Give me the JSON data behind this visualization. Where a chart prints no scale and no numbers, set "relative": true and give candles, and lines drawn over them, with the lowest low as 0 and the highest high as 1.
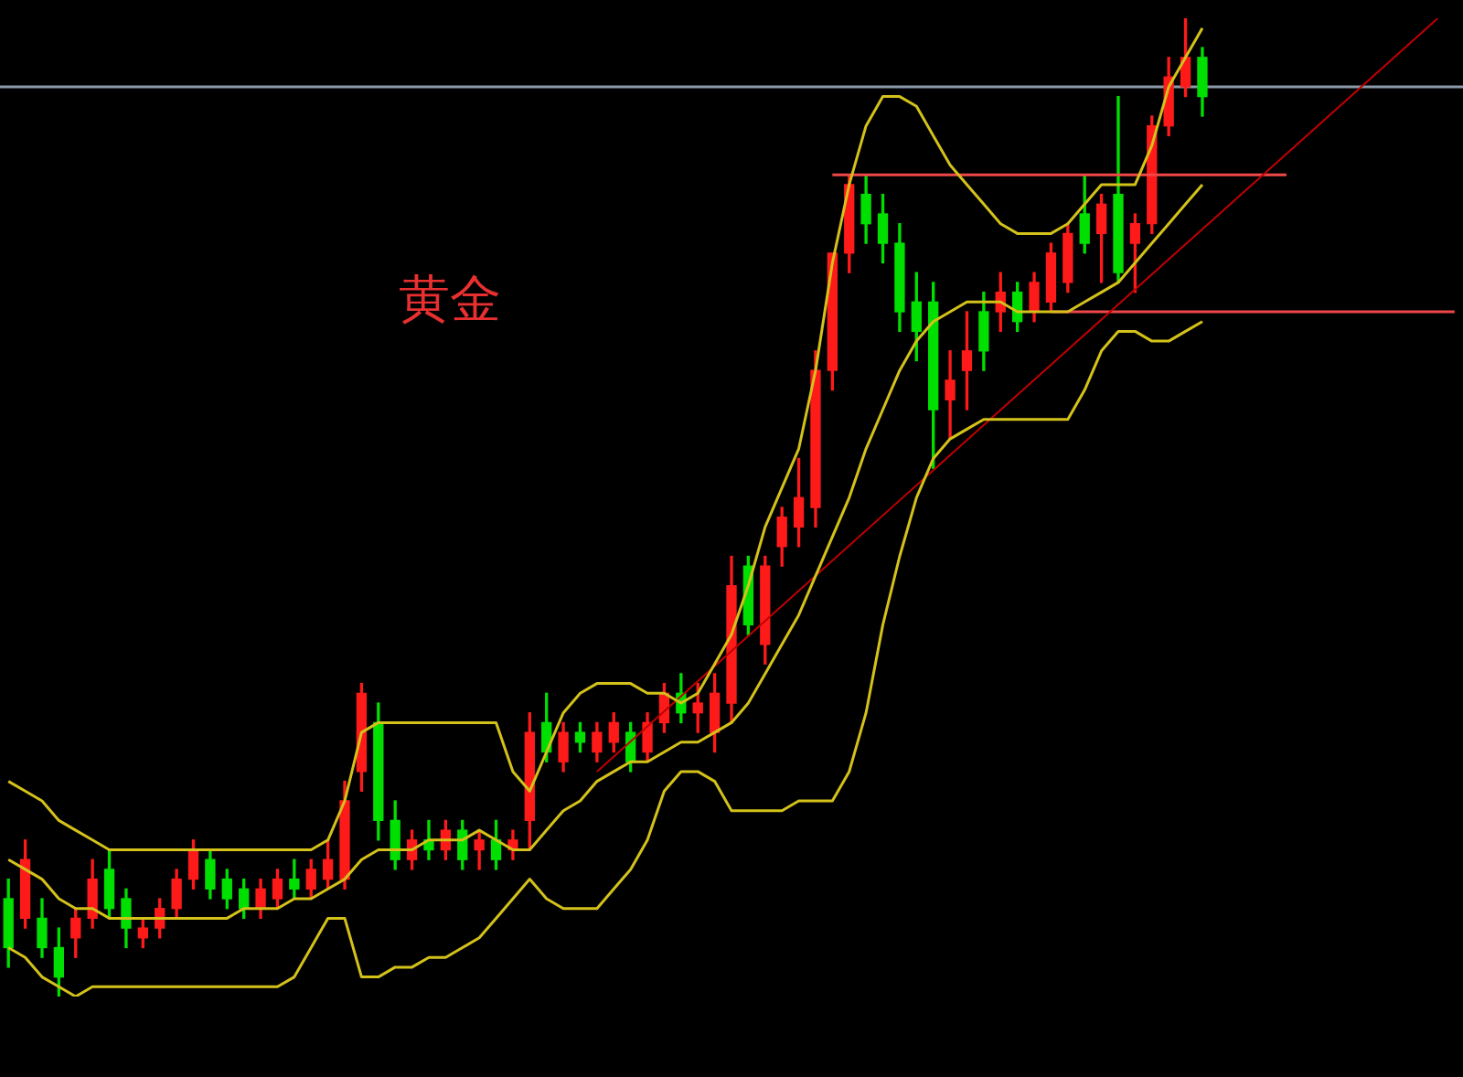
{
  "chart_data": {
    "type": "candlestick",
    "title": "黄金",
    "relative": true,
    "legend": false,
    "categories": [
      null,
      null,
      null,
      null,
      null,
      null,
      null,
      null,
      null,
      null,
      null,
      null,
      null,
      null,
      null,
      null,
      null,
      null,
      null,
      null,
      null,
      null,
      null,
      null,
      null,
      null,
      null,
      null,
      null,
      null,
      null,
      null,
      null,
      null,
      null,
      null,
      null,
      null,
      null,
      null,
      null,
      null,
      null,
      null,
      null,
      null,
      null,
      null,
      null,
      null,
      null,
      null,
      null,
      null,
      null,
      null,
      null,
      null,
      null,
      null,
      null,
      null,
      null,
      null,
      null,
      null,
      null,
      null,
      null,
      null,
      null,
      null,
      null,
      null,
      null,
      null,
      null,
      null,
      null,
      null,
      null,
      null,
      null,
      null,
      null,
      null,
      null
    ],
    "ohlc": [
      [
        0.1,
        0.12,
        0.03,
        0.05
      ],
      [
        0.08,
        0.16,
        0.07,
        0.14
      ],
      [
        0.08,
        0.1,
        0.04,
        0.05
      ],
      [
        0.05,
        0.07,
        0,
        0.02
      ],
      [
        0.06,
        0.09,
        0.04,
        0.08
      ],
      [
        0.08,
        0.14,
        0.07,
        0.12
      ],
      [
        0.13,
        0.15,
        0.08,
        0.09
      ],
      [
        0.1,
        0.11,
        0.05,
        0.07
      ],
      [
        0.06,
        0.08,
        0.05,
        0.07
      ],
      [
        0.07,
        0.1,
        0.06,
        0.09
      ],
      [
        0.09,
        0.13,
        0.08,
        0.12
      ],
      [
        0.12,
        0.16,
        0.11,
        0.15
      ],
      [
        0.14,
        0.15,
        0.1,
        0.11
      ],
      [
        0.12,
        0.13,
        0.09,
        0.1
      ],
      [
        0.11,
        0.12,
        0.08,
        0.09
      ],
      [
        0.09,
        0.12,
        0.08,
        0.11
      ],
      [
        0.1,
        0.13,
        0.09,
        0.12
      ],
      [
        0.12,
        0.14,
        0.1,
        0.11
      ],
      [
        0.11,
        0.14,
        0.1,
        0.13
      ],
      [
        0.12,
        0.16,
        0.11,
        0.14
      ],
      [
        0.12,
        0.22,
        0.11,
        0.2
      ],
      [
        0.23,
        0.32,
        0.21,
        0.31
      ],
      [
        0.28,
        0.3,
        0.16,
        0.18
      ],
      [
        0.18,
        0.2,
        0.13,
        0.14
      ],
      [
        0.14,
        0.17,
        0.13,
        0.16
      ],
      [
        0.16,
        0.18,
        0.14,
        0.15
      ],
      [
        0.15,
        0.18,
        0.14,
        0.17
      ],
      [
        0.17,
        0.18,
        0.13,
        0.14
      ],
      [
        0.15,
        0.17,
        0.13,
        0.16
      ],
      [
        0.16,
        0.18,
        0.13,
        0.14
      ],
      [
        0.15,
        0.17,
        0.14,
        0.16
      ],
      [
        0.18,
        0.29,
        0.15,
        0.27
      ],
      [
        0.28,
        0.31,
        0.24,
        0.25
      ],
      [
        0.24,
        0.28,
        0.23,
        0.27
      ],
      [
        0.27,
        0.28,
        0.25,
        0.26
      ],
      [
        0.25,
        0.28,
        0.24,
        0.27
      ],
      [
        0.26,
        0.29,
        0.25,
        0.28
      ],
      [
        0.27,
        0.28,
        0.23,
        0.24
      ],
      [
        0.25,
        0.29,
        0.24,
        0.28
      ],
      [
        0.28,
        0.32,
        0.27,
        0.31
      ],
      [
        0.31,
        0.33,
        0.28,
        0.29
      ],
      [
        0.29,
        0.32,
        0.27,
        0.3
      ],
      [
        0.27,
        0.33,
        0.25,
        0.31
      ],
      [
        0.3,
        0.45,
        0.28,
        0.42
      ],
      [
        0.44,
        0.45,
        0.37,
        0.38
      ],
      [
        0.36,
        0.45,
        0.34,
        0.44
      ],
      [
        0.46,
        0.5,
        0.44,
        0.49
      ],
      [
        0.48,
        0.55,
        0.46,
        0.51
      ],
      [
        0.5,
        0.66,
        0.48,
        0.64
      ],
      [
        0.64,
        0.76,
        0.62,
        0.76
      ],
      [
        0.76,
        0.84,
        0.74,
        0.83
      ],
      [
        0.82,
        0.84,
        0.77,
        0.79
      ],
      [
        0.8,
        0.82,
        0.75,
        0.77
      ],
      [
        0.77,
        0.79,
        0.68,
        0.7
      ],
      [
        0.71,
        0.74,
        0.65,
        0.68
      ],
      [
        0.71,
        0.73,
        0.54,
        0.6
      ],
      [
        0.61,
        0.66,
        0.57,
        0.63
      ],
      [
        0.64,
        0.7,
        0.6,
        0.66
      ],
      [
        0.7,
        0.72,
        0.64,
        0.66
      ],
      [
        0.7,
        0.74,
        0.68,
        0.72
      ],
      [
        0.72,
        0.73,
        0.68,
        0.69
      ],
      [
        0.7,
        0.74,
        0.69,
        0.73
      ],
      [
        0.71,
        0.77,
        0.7,
        0.76
      ],
      [
        0.73,
        0.79,
        0.72,
        0.78
      ],
      [
        0.8,
        0.84,
        0.76,
        0.77
      ],
      [
        0.78,
        0.82,
        0.73,
        0.81
      ],
      [
        0.82,
        0.92,
        0.73,
        0.74
      ],
      [
        0.77,
        0.8,
        0.72,
        0.79
      ],
      [
        0.79,
        0.9,
        0.78,
        0.89
      ],
      [
        0.89,
        0.96,
        0.88,
        0.94
      ],
      [
        0.93,
        1,
        0.92,
        0.96
      ],
      [
        0.96,
        0.97,
        0.9,
        0.92
      ],
      null,
      null,
      null,
      null,
      null,
      null,
      null,
      null,
      null,
      null,
      null,
      null,
      null,
      null,
      null
    ],
    "colors": [
      "#00e000",
      "#ff1a1a",
      "#00e000",
      "#00e000",
      "#ff1a1a",
      "#ff1a1a",
      "#00e000",
      "#00e000",
      "#ff1a1a",
      "#ff1a1a",
      "#ff1a1a",
      "#ff1a1a",
      "#00e000",
      "#00e000",
      "#00e000",
      "#ff1a1a",
      "#ff1a1a",
      "#00e000",
      "#ff1a1a",
      "#ff1a1a",
      "#ff1a1a",
      "#ff1a1a",
      "#00e000",
      "#00e000",
      "#ff1a1a",
      "#00e000",
      "#ff1a1a",
      "#00e000",
      "#ff1a1a",
      "#00e000",
      "#ff1a1a",
      "#ff1a1a",
      "#00e000",
      "#ff1a1a",
      "#00e000",
      "#ff1a1a",
      "#ff1a1a",
      "#00e000",
      "#ff1a1a",
      "#ff1a1a",
      "#00e000",
      "#ff1a1a",
      "#ff1a1a",
      "#ff1a1a",
      "#00e000",
      "#ff1a1a",
      "#ff1a1a",
      "#ff1a1a",
      "#ff1a1a",
      "#ff1a1a",
      "#ff1a1a",
      "#00e000",
      "#00e000",
      "#00e000",
      "#00e000",
      "#00e000",
      "#ff1a1a",
      "#ff1a1a",
      "#00e000",
      "#ff1a1a",
      "#00e000",
      "#ff1a1a",
      "#ff1a1a",
      "#ff1a1a",
      "#00e000",
      "#ff1a1a",
      "#00e000",
      "#ff1a1a",
      "#ff1a1a",
      "#ff1a1a",
      "#ff1a1a",
      "#00e000",
      null,
      null,
      null,
      null,
      null,
      null,
      null,
      null,
      null,
      null,
      null,
      null,
      null,
      null,
      null
    ],
    "series": [
      {
        "type": "line",
        "color": "#d4c21a",
        "values": [
          0.22,
          0.21,
          0.2,
          0.18,
          0.17,
          0.16,
          0.15,
          0.15,
          0.15,
          0.15,
          0.15,
          0.15,
          0.15,
          0.15,
          0.15,
          0.15,
          0.15,
          0.15,
          0.15,
          0.16,
          0.2,
          0.27,
          0.28,
          0.28,
          0.28,
          0.28,
          0.28,
          0.28,
          0.28,
          0.28,
          0.23,
          0.21,
          0.25,
          0.29,
          0.31,
          0.32,
          0.32,
          0.32,
          0.31,
          0.31,
          0.3,
          0.31,
          0.34,
          0.37,
          0.42,
          0.48,
          0.52,
          0.56,
          0.64,
          0.75,
          0.83,
          0.89,
          0.92,
          0.92,
          0.91,
          0.88,
          0.85,
          0.83,
          0.81,
          0.79,
          0.78,
          0.78,
          0.78,
          0.79,
          0.81,
          0.83,
          0.83,
          0.83,
          0.87,
          0.93,
          0.96,
          0.99,
          null,
          null,
          null,
          null,
          null,
          null,
          null,
          null,
          null,
          null,
          null,
          null,
          null,
          null,
          null
        ]
      },
      {
        "type": "line",
        "color": "#d4c21a",
        "values": [
          0.14,
          0.13,
          0.12,
          0.1,
          0.09,
          0.09,
          0.08,
          0.08,
          0.08,
          0.08,
          0.08,
          0.08,
          0.08,
          0.08,
          0.09,
          0.09,
          0.09,
          0.1,
          0.1,
          0.11,
          0.12,
          0.14,
          0.15,
          0.15,
          0.15,
          0.16,
          0.16,
          0.16,
          0.17,
          0.16,
          0.15,
          0.15,
          0.17,
          0.19,
          0.2,
          0.22,
          0.23,
          0.24,
          0.24,
          0.25,
          0.26,
          0.26,
          0.27,
          0.28,
          0.3,
          0.33,
          0.36,
          0.39,
          0.43,
          0.47,
          0.51,
          0.56,
          0.6,
          0.64,
          0.67,
          0.69,
          0.7,
          0.71,
          0.71,
          0.71,
          0.7,
          0.7,
          0.7,
          0.7,
          0.71,
          0.72,
          0.73,
          0.75,
          0.77,
          0.79,
          0.81,
          0.83,
          null,
          null,
          null,
          null,
          null,
          null,
          null,
          null,
          null,
          null,
          null,
          null,
          null,
          null,
          null
        ]
      },
      {
        "type": "line",
        "color": "#d4c21a",
        "values": [
          0.05,
          0.04,
          0.02,
          0.01,
          0,
          0.01,
          0.01,
          0.01,
          0.01,
          0.01,
          0.01,
          0.01,
          0.01,
          0.01,
          0.01,
          0.01,
          0.01,
          0.02,
          0.05,
          0.08,
          0.08,
          0.02,
          0.02,
          0.03,
          0.03,
          0.04,
          0.04,
          0.05,
          0.06,
          0.08,
          0.1,
          0.12,
          0.1,
          0.09,
          0.09,
          0.09,
          0.11,
          0.13,
          0.16,
          0.21,
          0.23,
          0.23,
          0.22,
          0.19,
          0.19,
          0.19,
          0.19,
          0.2,
          0.2,
          0.2,
          0.23,
          0.29,
          0.38,
          0.45,
          0.51,
          0.55,
          0.57,
          0.58,
          0.59,
          0.59,
          0.59,
          0.59,
          0.59,
          0.59,
          0.62,
          0.66,
          0.68,
          0.68,
          0.67,
          0.67,
          0.68,
          0.69,
          null,
          null,
          null,
          null,
          null,
          null,
          null,
          null,
          null,
          null,
          null,
          null,
          null,
          null,
          null
        ]
      },
      {
        "type": "line",
        "color": "#c00000",
        "values": [
          null,
          null,
          null,
          null,
          null,
          null,
          null,
          null,
          null,
          null,
          null,
          null,
          null,
          null,
          null,
          null,
          null,
          null,
          null,
          null,
          null,
          null,
          null,
          null,
          null,
          null,
          null,
          null,
          null,
          null,
          null,
          null,
          null,
          null,
          null,
          0.23,
          null,
          null,
          null,
          null,
          null,
          null,
          null,
          null,
          null,
          null,
          null,
          null,
          null,
          null,
          null,
          null,
          null,
          null,
          null,
          null,
          null,
          null,
          null,
          null,
          null,
          null,
          null,
          null,
          null,
          null,
          null,
          null,
          null,
          null,
          null,
          null,
          null,
          null,
          null,
          null,
          null,
          null,
          null,
          null,
          null,
          null,
          null,
          null,
          null,
          1.0,
          null
        ]
      },
      {
        "type": "line",
        "color": "#f04848",
        "values": [
          null,
          null,
          null,
          null,
          null,
          null,
          null,
          null,
          null,
          null,
          null,
          null,
          null,
          null,
          null,
          null,
          null,
          null,
          null,
          null,
          null,
          null,
          null,
          null,
          null,
          null,
          null,
          null,
          null,
          null,
          null,
          null,
          null,
          null,
          null,
          null,
          null,
          null,
          null,
          null,
          null,
          null,
          null,
          null,
          null,
          null,
          null,
          null,
          null,
          0.84,
          0.84,
          0.84,
          0.84,
          0.84,
          0.84,
          0.84,
          0.84,
          0.84,
          0.84,
          0.84,
          0.84,
          0.84,
          0.84,
          0.84,
          0.84,
          0.84,
          0.84,
          0.84,
          0.84,
          0.84,
          0.84,
          0.84,
          0.84,
          0.84,
          0.84,
          0.84,
          0.84,
          null,
          null,
          null,
          null,
          null,
          null,
          null,
          null,
          null,
          null
        ]
      },
      {
        "type": "line",
        "color": "#f04848",
        "values": [
          null,
          null,
          null,
          null,
          null,
          null,
          null,
          null,
          null,
          null,
          null,
          null,
          null,
          null,
          null,
          null,
          null,
          null,
          null,
          null,
          null,
          null,
          null,
          null,
          null,
          null,
          null,
          null,
          null,
          null,
          null,
          null,
          null,
          null,
          null,
          null,
          null,
          null,
          null,
          null,
          null,
          null,
          null,
          null,
          null,
          null,
          null,
          null,
          null,
          null,
          null,
          null,
          null,
          null,
          null,
          null,
          null,
          null,
          null,
          null,
          null,
          null,
          0.7,
          0.7,
          0.7,
          0.7,
          0.7,
          0.7,
          0.7,
          0.7,
          0.7,
          0.7,
          0.7,
          0.7,
          0.7,
          0.7,
          0.7,
          0.7,
          0.7,
          0.7,
          0.7,
          0.7,
          0.7,
          0.7,
          0.7,
          0.7,
          0.7
        ]
      }
    ],
    "ref_lines": [
      {
        "axis": "y",
        "value": 0.93,
        "color": "#8a9aa8"
      }
    ]
  }
}
